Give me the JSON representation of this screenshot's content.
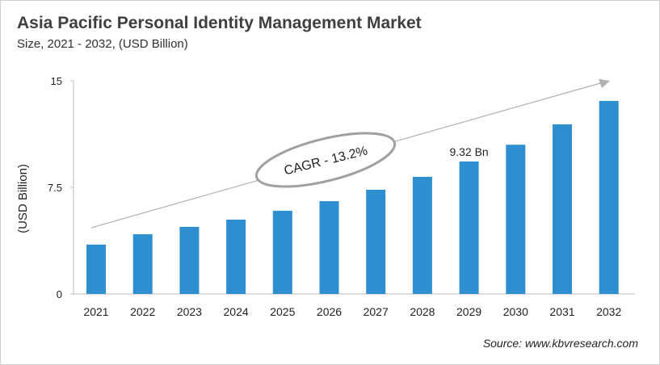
{
  "title": "Asia Pacific Personal Identity Management Market",
  "subtitle": "Size, 2021 - 2032, (USD Billion)",
  "source": "Source: www.kbvresearch.com",
  "colors": {
    "bar": "#2e8fd0",
    "arrow": "#b0b0b0",
    "ellipse": "#a0a0a0"
  },
  "chart_data": {
    "type": "bar",
    "categories": [
      "2021",
      "2022",
      "2023",
      "2024",
      "2025",
      "2026",
      "2027",
      "2028",
      "2029",
      "2030",
      "2031",
      "2032"
    ],
    "values": [
      3.47,
      4.2,
      4.72,
      5.23,
      5.85,
      6.53,
      7.33,
      8.24,
      9.32,
      10.5,
      11.93,
      13.58
    ],
    "ylabel": "(USD Billion)",
    "ylim": [
      0,
      15
    ],
    "yticks": [
      "0",
      "7.5",
      "15"
    ],
    "grid": false,
    "annotations": {
      "cagr": "CAGR - 13.2%",
      "value_label": "9.32 Bn",
      "value_label_category": "2029"
    }
  }
}
